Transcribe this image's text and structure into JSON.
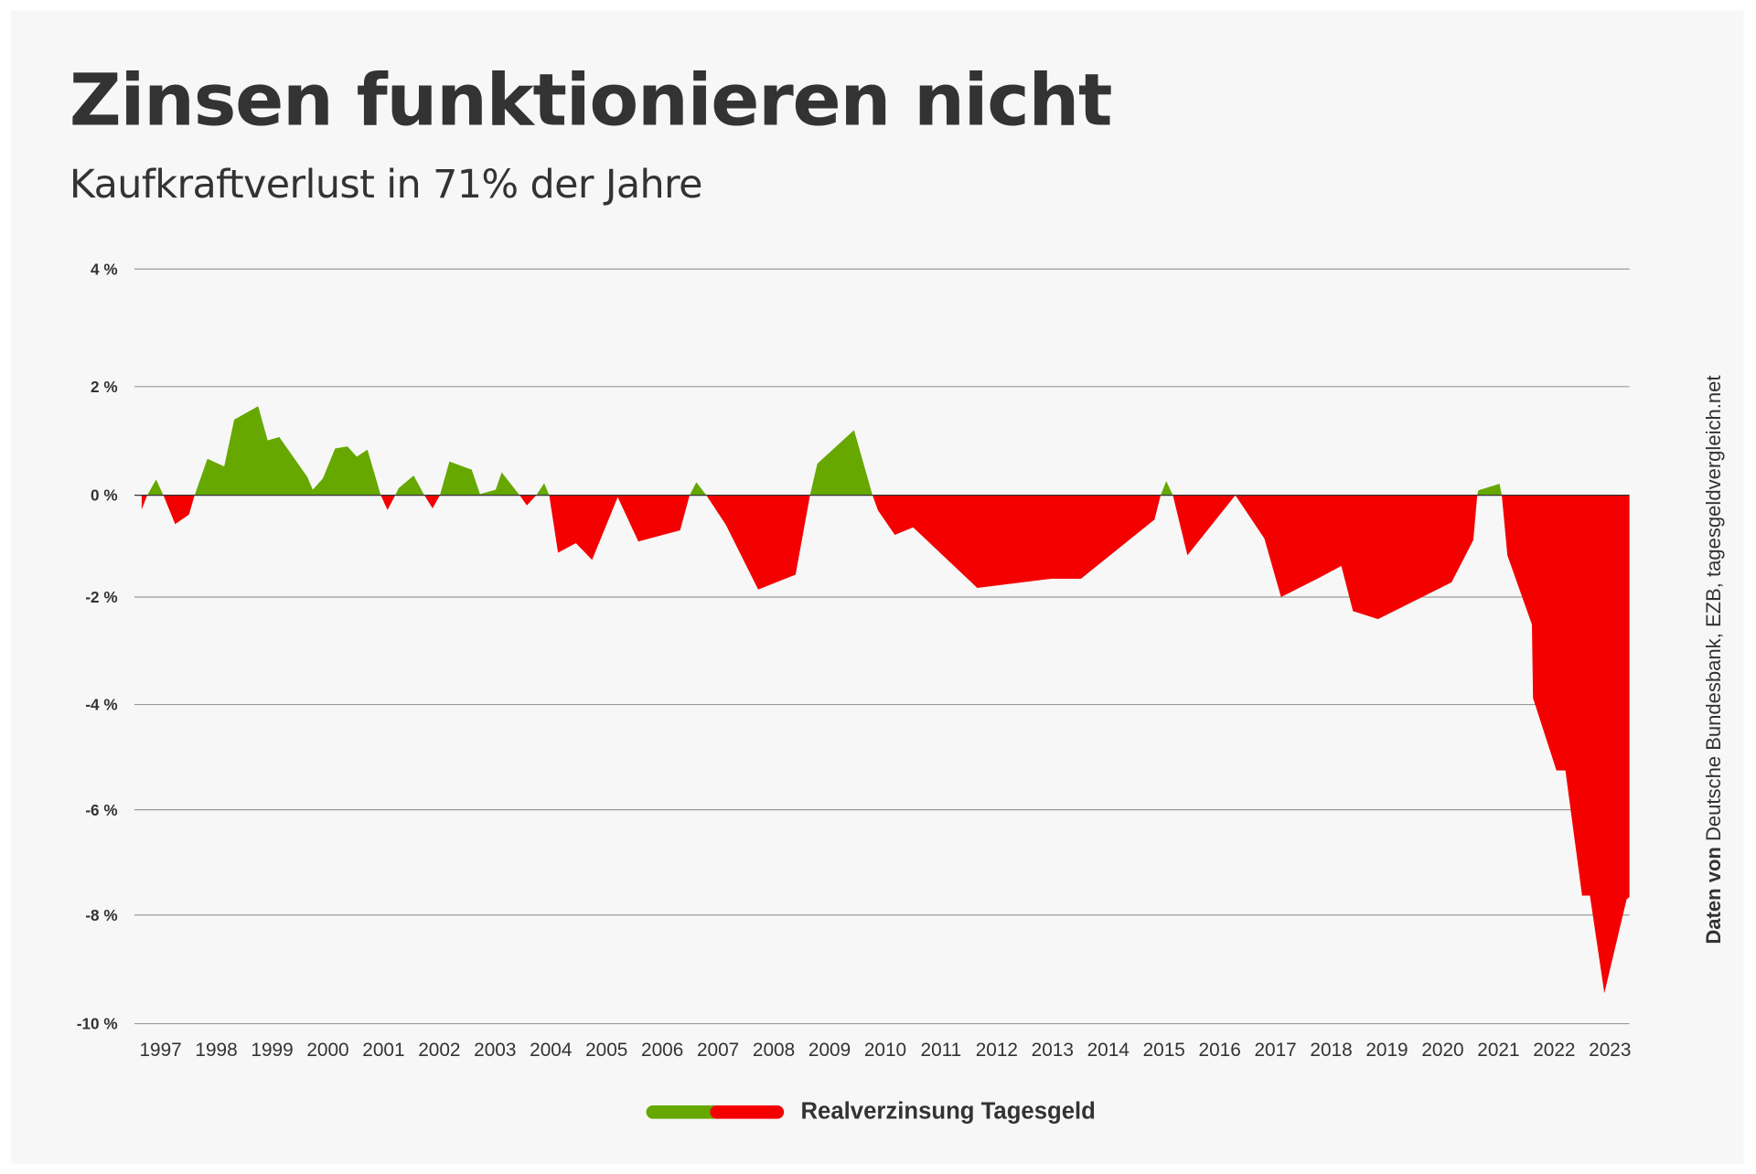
{
  "title": "Zinsen funktionieren nicht",
  "subtitle": "Kaufkraftverlust in 71% der Jahre",
  "source": {
    "prefix": "Daten von",
    "text": " Deutsche Bundesbank, EZB, tagesgeldvergleich.net"
  },
  "colors": {
    "positive": "#66a800",
    "negative": "#f50000",
    "background": "#f7f7f7"
  },
  "chart_data": {
    "type": "area",
    "title": "Zinsen funktionieren nicht",
    "subtitle": "Kaufkraftverlust in 71% der Jahre",
    "xlabel": "",
    "ylabel": "",
    "ylim": [
      -10,
      4
    ],
    "xlim": [
      1997.15,
      2023.85
    ],
    "grid": true,
    "legend_position": "bottom-center",
    "y_ticks": [
      4,
      2,
      0,
      -2,
      -4,
      -6,
      -8,
      -10
    ],
    "y_tick_labels": [
      "4 %",
      "2 %",
      "0 %",
      "-2 %",
      "-4 %",
      "-6 %",
      "-8 %",
      "-10 %"
    ],
    "x_tick_labels": [
      "1997",
      "1998",
      "1999",
      "2000",
      "2001",
      "2002",
      "2003",
      "2004",
      "2005",
      "2006",
      "2007",
      "2008",
      "2009",
      "2010",
      "2011",
      "2012",
      "2013",
      "2014",
      "2015",
      "2016",
      "2017",
      "2018",
      "2019",
      "2020",
      "2021",
      "2022",
      "2023"
    ],
    "series": [
      {
        "name": "Realverzinsung Tagesgeld",
        "x": [
          1997.16,
          1997.26,
          1997.42,
          1997.55,
          1997.76,
          1998.01,
          1998.11,
          1998.34,
          1998.64,
          1998.82,
          1999.25,
          1999.42,
          1999.63,
          2000.13,
          2000.23,
          2000.41,
          2000.63,
          2000.85,
          2001.02,
          2001.21,
          2001.45,
          2001.57,
          2001.71,
          2001.77,
          2002.04,
          2002.23,
          2002.38,
          2002.51,
          2002.68,
          2003.08,
          2003.23,
          2003.51,
          2003.62,
          2003.94,
          2004.07,
          2004.24,
          2004.38,
          2004.47,
          2004.63,
          2004.95,
          2005.24,
          2005.7,
          2006.07,
          2006.82,
          2006.99,
          2007.11,
          2007.29,
          2007.64,
          2008.22,
          2008.89,
          2009.15,
          2009.28,
          2009.94,
          2010.27,
          2010.37,
          2010.67,
          2011.0,
          2012.15,
          2013.48,
          2014.01,
          2015.33,
          2015.44,
          2015.54,
          2015.66,
          2015.92,
          2016.78,
          2017.3,
          2017.6,
          2018.25,
          2018.68,
          2018.89,
          2019.34,
          2020.66,
          2021.05,
          2021.12,
          2021.14,
          2021.52,
          2021.56,
          2021.66,
          2022.1,
          2022.12,
          2022.54,
          2022.7,
          2023.0,
          2023.14,
          2023.4,
          2023.8,
          2023.85
        ],
        "values": [
          -0.28,
          0,
          0.29,
          0,
          -0.57,
          -0.38,
          0,
          0.67,
          0.53,
          1.39,
          1.64,
          1.01,
          1.07,
          0.34,
          0.1,
          0.31,
          0.86,
          0.9,
          0.71,
          0.84,
          0,
          -0.29,
          0,
          0.13,
          0.36,
          0,
          -0.26,
          0,
          0.62,
          0.47,
          0.02,
          0.1,
          0.42,
          0,
          -0.2,
          0,
          0.22,
          0,
          -1.13,
          -0.94,
          -1.27,
          -0.04,
          -0.91,
          -0.69,
          0,
          0.24,
          0,
          -0.58,
          -1.85,
          -1.56,
          0,
          0.58,
          1.2,
          0,
          -0.3,
          -0.78,
          -0.63,
          -1.82,
          -1.64,
          -1.64,
          -0.48,
          0,
          0.26,
          0,
          -1.18,
          0,
          -0.85,
          -2.0,
          -1.64,
          -1.39,
          -2.26,
          -2.41,
          -1.71,
          -0.88,
          0,
          0.09,
          0.21,
          0,
          -1.18,
          -2.51,
          -3.88,
          -5.25,
          -5.25,
          -7.63,
          -7.63,
          -9.44,
          -7.7,
          -7.66
        ]
      }
    ]
  }
}
